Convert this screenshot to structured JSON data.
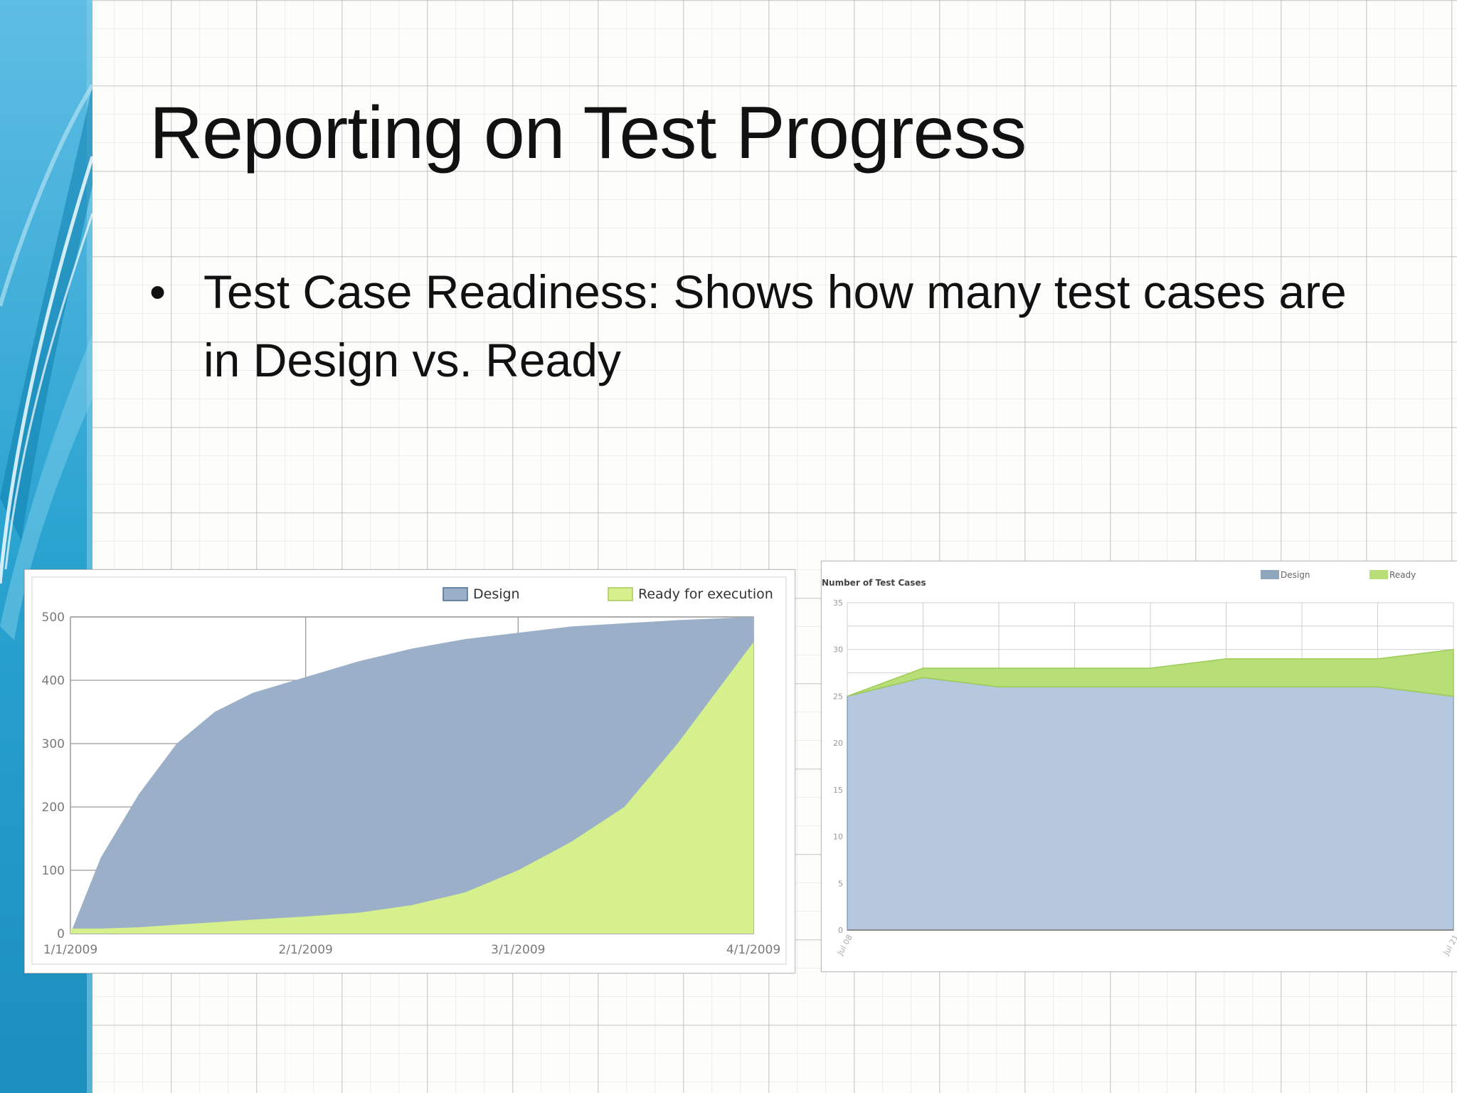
{
  "slide": {
    "title": "Reporting on Test Progress",
    "bullet_symbol": "•",
    "bullet_text": "Test Case Readiness: Shows how many test cases are in Design vs. Ready"
  },
  "colors": {
    "design": "#9bb0c8",
    "ready": "#d6f08e",
    "design2": "#b6c8de",
    "ready2": "#b8de78",
    "sidebar_dark": "#1a8fbf",
    "sidebar_light": "#6cc4e6"
  },
  "chart_data": [
    {
      "type": "area",
      "stacked": false,
      "xlabel": "",
      "ylabel": "",
      "x_ticks": [
        "1/1/2009",
        "2/1/2009",
        "3/1/2009",
        "4/1/2009"
      ],
      "ylim": [
        0,
        500
      ],
      "y_ticks": [
        0,
        100,
        200,
        300,
        400,
        500
      ],
      "legend": "top-right",
      "grid": true,
      "series": [
        {
          "name": "Design",
          "x": [
            "1/1/2009",
            "1/5/2009",
            "1/10/2009",
            "1/15/2009",
            "1/20/2009",
            "1/25/2009",
            "2/1/2009",
            "2/8/2009",
            "2/15/2009",
            "2/22/2009",
            "3/1/2009",
            "3/8/2009",
            "3/15/2009",
            "3/22/2009",
            "4/1/2009"
          ],
          "values": [
            0,
            120,
            220,
            300,
            350,
            380,
            405,
            430,
            450,
            465,
            475,
            485,
            490,
            495,
            500
          ]
        },
        {
          "name": "Ready for execution",
          "x": [
            "1/1/2009",
            "1/5/2009",
            "1/10/2009",
            "1/15/2009",
            "1/20/2009",
            "1/25/2009",
            "2/1/2009",
            "2/8/2009",
            "2/15/2009",
            "2/22/2009",
            "3/1/2009",
            "3/8/2009",
            "3/15/2009",
            "3/22/2009",
            "4/1/2009"
          ],
          "values": [
            8,
            8,
            10,
            14,
            18,
            22,
            27,
            33,
            45,
            65,
            100,
            145,
            200,
            300,
            460
          ]
        }
      ]
    },
    {
      "type": "area",
      "stacked": true,
      "title": "Number of Test Cases",
      "xlabel": "",
      "ylabel": "",
      "ylim": [
        0,
        35
      ],
      "y_ticks": [
        0,
        5,
        10,
        15,
        20,
        25,
        30,
        35
      ],
      "x_ticks": [
        "Jul 08",
        "Jul 21"
      ],
      "legend": "top-right",
      "grid": true,
      "series": [
        {
          "name": "Design",
          "values": [
            25,
            27,
            26,
            26,
            26,
            26,
            26,
            26,
            25
          ]
        },
        {
          "name": "Ready",
          "values": [
            0,
            1,
            2,
            2,
            2,
            3,
            3,
            3,
            5
          ]
        }
      ]
    }
  ]
}
